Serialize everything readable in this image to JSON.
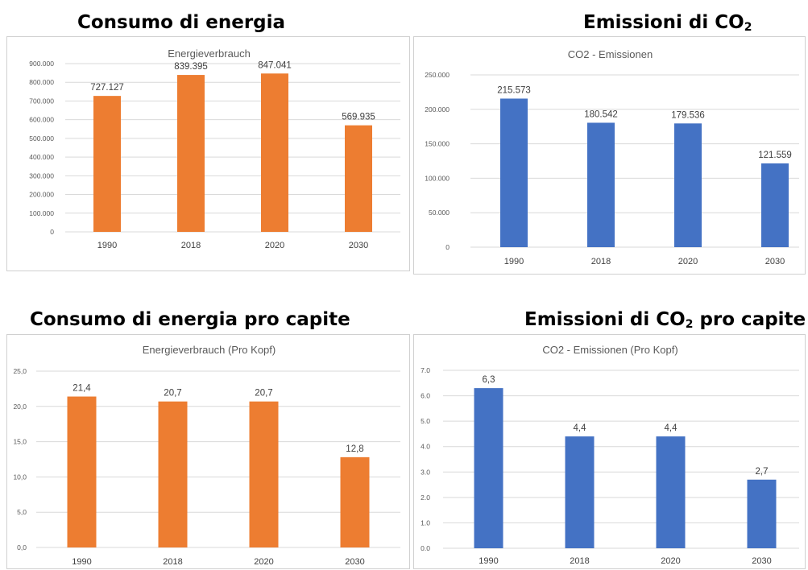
{
  "headings": {
    "energy": "Consumo di energia",
    "co2_main": "Emissioni di CO",
    "co2_sub": "2",
    "energy_pc": "Consumo di energia pro capite",
    "co2_pc_main": "Emissioni di CO",
    "co2_pc_sub": "2",
    "co2_pc_suffix": " pro capite"
  },
  "chart_data": [
    {
      "type": "bar",
      "title": "Energieverbrauch",
      "categories": [
        "1990",
        "2018",
        "2020",
        "2030"
      ],
      "values": [
        727127,
        839395,
        847041,
        569935
      ],
      "value_labels": [
        "727.127",
        "839.395",
        "847.041",
        "569.935"
      ],
      "ylim": [
        0,
        900000
      ],
      "yticks": [
        0,
        100000,
        200000,
        300000,
        400000,
        500000,
        600000,
        700000,
        800000,
        900000
      ],
      "ytick_labels": [
        "0",
        "100.000",
        "200.000",
        "300.000",
        "400.000",
        "500.000",
        "600.000",
        "700.000",
        "800.000",
        "900.000"
      ],
      "color": "#ED7D31",
      "grid": true
    },
    {
      "type": "bar",
      "title": "CO2 - Emissionen",
      "categories": [
        "1990",
        "2018",
        "2020",
        "2030"
      ],
      "values": [
        215573,
        180542,
        179536,
        121559
      ],
      "value_labels": [
        "215.573",
        "180.542",
        "179.536",
        "121.559"
      ],
      "ylim": [
        0,
        250000
      ],
      "yticks": [
        0,
        50000,
        100000,
        150000,
        200000,
        250000
      ],
      "ytick_labels": [
        "0",
        "50.000",
        "100.000",
        "150.000",
        "200.000",
        "250.000"
      ],
      "color": "#4472C4",
      "grid": true
    },
    {
      "type": "bar",
      "title": "Energieverbrauch (Pro Kopf)",
      "categories": [
        "1990",
        "2018",
        "2020",
        "2030"
      ],
      "values": [
        21.4,
        20.7,
        20.7,
        12.8
      ],
      "value_labels": [
        "21,4",
        "20,7",
        "20,7",
        "12,8"
      ],
      "ylim": [
        0,
        25
      ],
      "yticks": [
        0,
        5,
        10,
        15,
        20,
        25
      ],
      "ytick_labels": [
        "0,0",
        "5,0",
        "10,0",
        "15,0",
        "20,0",
        "25,0"
      ],
      "color": "#ED7D31",
      "grid": true
    },
    {
      "type": "bar",
      "title": "CO2 - Emissionen (Pro Kopf)",
      "categories": [
        "1990",
        "2018",
        "2020",
        "2030"
      ],
      "values": [
        6.3,
        4.4,
        4.4,
        2.7
      ],
      "value_labels": [
        "6,3",
        "4,4",
        "4,4",
        "2,7"
      ],
      "ylim": [
        0,
        7
      ],
      "yticks": [
        0,
        1,
        2,
        3,
        4,
        5,
        6,
        7
      ],
      "ytick_labels": [
        "0.0",
        "1.0",
        "2.0",
        "3.0",
        "4.0",
        "5.0",
        "6.0",
        "7.0"
      ],
      "color": "#4472C4",
      "grid": true
    }
  ]
}
